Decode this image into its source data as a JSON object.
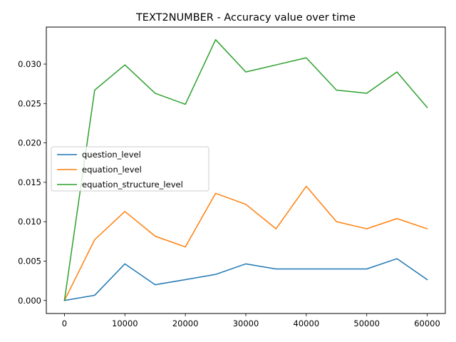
{
  "chart_data": {
    "type": "line",
    "title": "TEXT2NUMBER - Accuracy value over time",
    "xlabel": "",
    "ylabel": "",
    "xlim": [
      -3000,
      63000
    ],
    "ylim": [
      -0.00165,
      0.0347
    ],
    "x_ticks": [
      0,
      10000,
      20000,
      30000,
      40000,
      50000,
      60000
    ],
    "x_tick_labels": [
      "0",
      "10000",
      "20000",
      "30000",
      "40000",
      "50000",
      "60000"
    ],
    "y_ticks": [
      0.0,
      0.005,
      0.01,
      0.015,
      0.02,
      0.025,
      0.03
    ],
    "y_tick_labels": [
      "0.000",
      "0.005",
      "0.010",
      "0.015",
      "0.020",
      "0.025",
      "0.030"
    ],
    "grid": false,
    "legend_position": "center-left",
    "x": [
      0,
      5000,
      10000,
      15000,
      20000,
      25000,
      30000,
      35000,
      40000,
      45000,
      50000,
      55000,
      60000
    ],
    "series": [
      {
        "name": "question_level",
        "color": "#1f77b4",
        "values": [
          0.0,
          0.00066,
          0.00465,
          0.002,
          0.00265,
          0.00331,
          0.00465,
          0.004,
          0.004,
          0.004,
          0.004,
          0.00531,
          0.00265
        ]
      },
      {
        "name": "equation_level",
        "color": "#ff7f0e",
        "values": [
          0.0,
          0.00772,
          0.0113,
          0.00816,
          0.0068,
          0.0136,
          0.0122,
          0.0091,
          0.0145,
          0.01,
          0.0091,
          0.0104,
          0.0091
        ]
      },
      {
        "name": "equation_structure_level",
        "color": "#2ca02c",
        "values": [
          0.0,
          0.0267,
          0.0299,
          0.0263,
          0.0249,
          0.0331,
          0.029,
          0.0299,
          0.0308,
          0.0267,
          0.0263,
          0.029,
          0.0245
        ]
      }
    ]
  }
}
